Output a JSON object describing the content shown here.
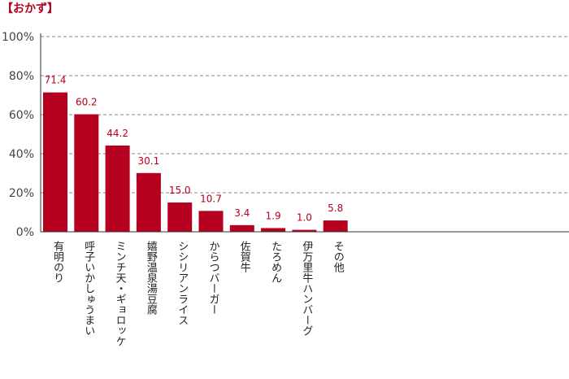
{
  "chart_data": {
    "type": "bar",
    "title": "【おかず】",
    "categories": [
      "有明のり",
      "呼子いかしゅうまい",
      "ミンチ天・ギョロッケ",
      "嬉野温泉湯豆腐",
      "シシリアンライス",
      "からつバーガー",
      "佐賀牛",
      "たろめん",
      "伊万里牛ハンバーグ",
      "その他"
    ],
    "values": [
      71.4,
      60.2,
      44.2,
      30.1,
      15.0,
      10.7,
      3.4,
      1.9,
      1.0,
      5.8
    ],
    "value_labels": [
      "71.4",
      "60.2",
      "44.2",
      "30.1",
      "15.0",
      "10.7",
      "3.4",
      "1.9",
      "1.0",
      "5.8"
    ],
    "ylim": [
      0,
      100
    ],
    "yticks": [
      "0%",
      "20%",
      "40%",
      "60%",
      "80%",
      "100%"
    ],
    "grid": "dashed-horizontal",
    "bar_color": "#b5001f",
    "title_color": "#b5001f"
  }
}
